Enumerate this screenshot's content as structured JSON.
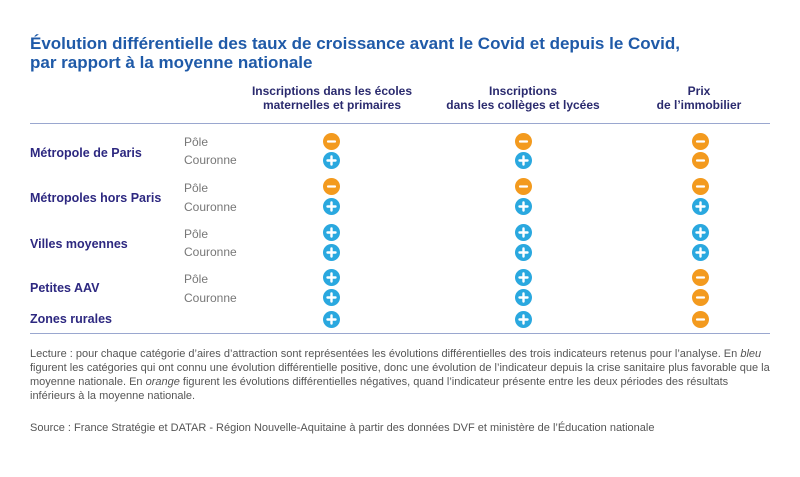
{
  "title_line1": "Évolution différentielle des taux de croissance avant le Covid et depuis le Covid,",
  "title_line2": "par rapport à la moyenne nationale",
  "columns": [
    {
      "line1": "Inscriptions dans les écoles",
      "line2": "maternelles et primaires"
    },
    {
      "line1": "Inscriptions",
      "line2": "dans les collèges et lycées"
    },
    {
      "line1": "Prix",
      "line2": "de l’immobilier"
    }
  ],
  "groups": [
    {
      "label": "Métropole de Paris"
    },
    {
      "label": "Métropoles hors Paris"
    },
    {
      "label": "Villes moyennes"
    },
    {
      "label": "Petites AAV"
    },
    {
      "label": "Zones rurales"
    }
  ],
  "sub_labels": {
    "pole": "Pôle",
    "couronne": "Couronne"
  },
  "colors": {
    "positive": "#2aa8df",
    "negative": "#f39a1e",
    "title": "#1f5aa8",
    "group_label": "#2d2880"
  },
  "chart_data": {
    "type": "table",
    "columns": [
      "Inscriptions dans les écoles maternelles et primaires",
      "Inscriptions dans les collèges et lycées",
      "Prix de l’immobilier"
    ],
    "rows": [
      {
        "group": "Métropole de Paris",
        "sub": "Pôle",
        "values": [
          "-",
          "-",
          "-"
        ]
      },
      {
        "group": "Métropole de Paris",
        "sub": "Couronne",
        "values": [
          "+",
          "+",
          "-"
        ]
      },
      {
        "group": "Métropoles hors Paris",
        "sub": "Pôle",
        "values": [
          "-",
          "-",
          "-"
        ]
      },
      {
        "group": "Métropoles hors Paris",
        "sub": "Couronne",
        "values": [
          "+",
          "+",
          "+"
        ]
      },
      {
        "group": "Villes moyennes",
        "sub": "Pôle",
        "values": [
          "+",
          "+",
          "+"
        ]
      },
      {
        "group": "Villes moyennes",
        "sub": "Couronne",
        "values": [
          "+",
          "+",
          "+"
        ]
      },
      {
        "group": "Petites AAV",
        "sub": "Pôle",
        "values": [
          "+",
          "+",
          "-"
        ]
      },
      {
        "group": "Petites AAV",
        "sub": "Couronne",
        "values": [
          "+",
          "+",
          "-"
        ]
      },
      {
        "group": "Zones rurales",
        "sub": "",
        "values": [
          "+",
          "+",
          "-"
        ]
      }
    ]
  },
  "lecture": {
    "text1": "Lecture : pour chaque catégorie d’aires d’attraction sont représentées les évolutions différentielles des trois indicateurs retenus pour l’analyse. En ",
    "blue_word": "bleu",
    "text2": " figurent les catégories qui ont connu une évolution différentielle positive, donc une évolution de l’indicateur depuis la crise sanitaire plus favorable que la moyenne nationale. En ",
    "orange_word": "orange",
    "text3": " figurent les évolutions différentielles négatives, quand l’indicateur présente entre les deux périodes des résultats inférieurs à la moyenne nationale."
  },
  "source": "Source : France Stratégie et DATAR - Région Nouvelle-Aquitaine à partir des données DVF et ministère de l’Éducation nationale"
}
